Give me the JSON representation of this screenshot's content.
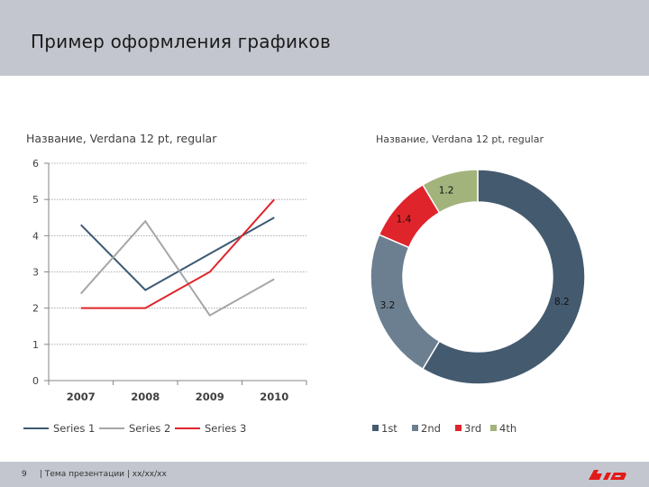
{
  "slide": {
    "title": "Пример оформления графиков",
    "page_number": "9",
    "footer_text": "| Тема презентации | xx/xx/xx"
  },
  "logo": {
    "icon": "rzd-logo-icon",
    "color": "#e21a1a"
  },
  "chart_data": [
    {
      "type": "line",
      "title": "Название, Verdana 12 pt, regular",
      "categories": [
        "2007",
        "2008",
        "2009",
        "2010"
      ],
      "series": [
        {
          "name": "Series 1",
          "color": "#3d5a73",
          "values": [
            4.3,
            2.5,
            3.5,
            4.5
          ]
        },
        {
          "name": "Series 2",
          "color": "#a6a6a6",
          "values": [
            2.4,
            4.4,
            1.8,
            2.8
          ]
        },
        {
          "name": "Series 3",
          "color": "#e0242b",
          "values": [
            2.0,
            2.0,
            3.0,
            5.0
          ]
        }
      ],
      "ylim": [
        0,
        6
      ],
      "yticks": [
        "0",
        "1",
        "2",
        "3",
        "4",
        "5",
        "6"
      ],
      "grid": true,
      "legend": "bottom",
      "xlabel": "",
      "ylabel": ""
    },
    {
      "type": "pie",
      "variant": "donut",
      "title": "Название, Verdana 12 pt, regular",
      "categories": [
        "1st",
        "2nd",
        "3rd",
        "4th"
      ],
      "values": [
        8.2,
        3.2,
        1.4,
        1.2
      ],
      "labels": [
        "8.2",
        "3.2",
        "1.4",
        "1.2"
      ],
      "colors": [
        "#445a6f",
        "#6c7f91",
        "#e0242b",
        "#a3b37c"
      ],
      "legend": "bottom"
    }
  ]
}
